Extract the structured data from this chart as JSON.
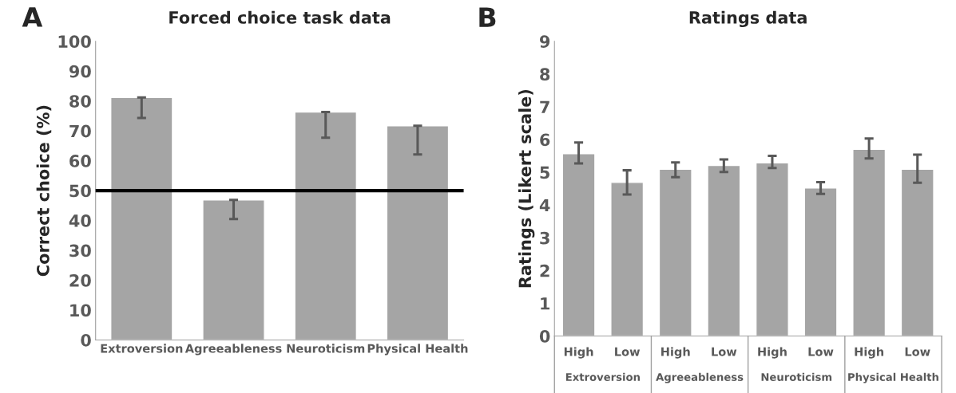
{
  "chart_data": [
    {
      "type": "bar",
      "title": "Forced choice task data",
      "ylabel": "Correct choice (%)",
      "annotations": [
        "A"
      ],
      "categories": [
        "Extroversion",
        "Agreeableness",
        "Neuroticism",
        "Physical Health"
      ],
      "values": [
        81.2,
        46.9,
        76.3,
        71.7
      ],
      "color": "#a5a5a5",
      "errors": [
        [
          74.3,
          81.2
        ],
        [
          40.5,
          46.9
        ],
        [
          67.7,
          76.3
        ],
        [
          62.1,
          71.7
        ]
      ],
      "ylim": [
        0,
        100
      ],
      "yticks": [
        0,
        10,
        20,
        30,
        40,
        50,
        60,
        70,
        80,
        90,
        100
      ],
      "ref_lines": [
        {
          "axis": "y",
          "value": 50,
          "color": "#000000"
        }
      ],
      "grid": false
    },
    {
      "type": "bar",
      "title": "Ratings data",
      "ylabel": "Ratings (Likert scale)",
      "annotations": [
        "B",
        "Extroversion",
        "Agreeableness",
        "Neuroticism",
        "Physical Health"
      ],
      "categories": [
        "High",
        "Low",
        "High",
        "Low",
        "High",
        "Low",
        "High",
        "Low"
      ],
      "values": [
        5.57,
        4.69,
        5.09,
        5.21,
        5.29,
        4.52,
        5.7,
        5.09
      ],
      "color": "#a5a5a5",
      "errors": [
        [
          5.27,
          5.91
        ],
        [
          4.32,
          5.06
        ],
        [
          4.85,
          5.3
        ],
        [
          5.01,
          5.39
        ],
        [
          5.13,
          5.5
        ],
        [
          4.34,
          4.7
        ],
        [
          5.42,
          6.03
        ],
        [
          4.68,
          5.54
        ]
      ],
      "ylim": [
        0,
        9
      ],
      "yticks": [
        0,
        1,
        2,
        3,
        4,
        5,
        6,
        7,
        8,
        9
      ],
      "grid": false
    }
  ]
}
